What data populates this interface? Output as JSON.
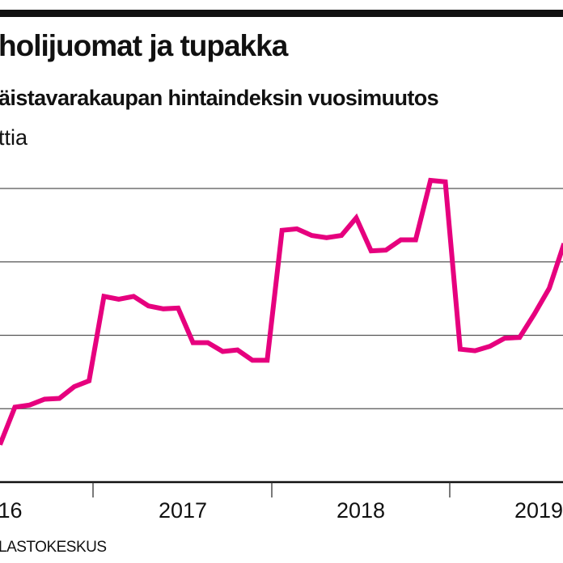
{
  "chart_data": {
    "type": "line",
    "title": "holijuomat ja tupakka",
    "subtitle": "äistavarakaupan hintaindeksin vuosimuutos",
    "ylabel": "ttia",
    "xlabel": "",
    "source": "LASTOKESKUS",
    "x_tick_labels": [
      "016",
      "2017",
      "2018",
      "2019"
    ],
    "ylim": [
      0,
      4
    ],
    "y_units_note_hidden": null,
    "grid": true,
    "series": [
      {
        "name": "hintaindeksin vuosimuutos",
        "color": "#e6007e",
        "values": [
          0.51,
          1.02,
          1.05,
          1.13,
          1.14,
          1.3,
          1.38,
          2.53,
          2.49,
          2.53,
          2.4,
          2.36,
          2.37,
          1.9,
          1.9,
          1.78,
          1.8,
          1.66,
          1.66,
          3.43,
          3.45,
          3.36,
          3.33,
          3.36,
          3.6,
          3.15,
          3.16,
          3.3,
          3.3,
          4.11,
          4.09,
          1.81,
          1.79,
          1.85,
          1.96,
          1.97,
          2.29,
          2.64,
          3.25
        ]
      }
    ]
  }
}
